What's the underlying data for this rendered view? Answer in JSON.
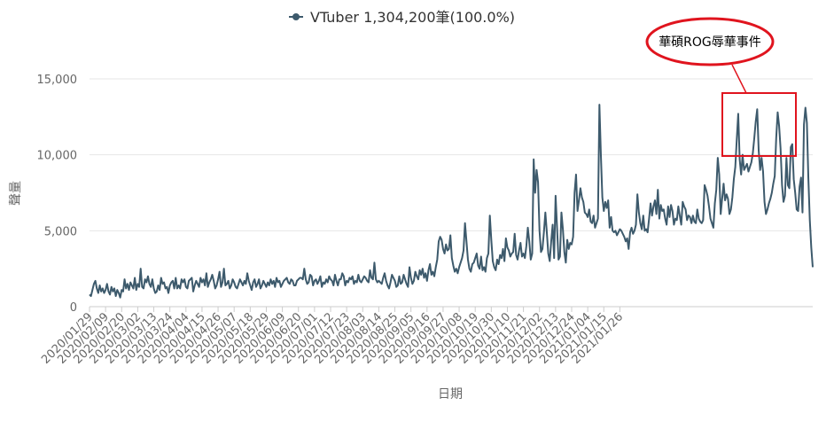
{
  "chart_data": {
    "type": "line",
    "legend": {
      "label": "VTuber 1,304,200筆(100.0%)",
      "placement": "top-center"
    },
    "xlabel": "日期",
    "ylabel": "聲量",
    "ylim": [
      0,
      15000
    ],
    "y_ticks": [
      0,
      5000,
      10000,
      15000
    ],
    "y_tick_labels": [
      "0",
      "5,000",
      "10,000",
      "15,000"
    ],
    "grid": "horizontal",
    "colors": {
      "series": "#3d5a6c",
      "grid": "#e6e6e6",
      "annotation": "#e0141e"
    },
    "x_tick_labels": [
      "2020/01/29",
      "2020/02/09",
      "2020/02/20",
      "2020/03/02",
      "2020/03/13",
      "2020/03/24",
      "2020/04/04",
      "2020/04/15",
      "2020/04/26",
      "2020/05/07",
      "2020/05/18",
      "2020/05/29",
      "2020/06/09",
      "2020/06/20",
      "2020/07/01",
      "2020/07/12",
      "2020/07/23",
      "2020/08/03",
      "2020/08/14",
      "2020/08/25",
      "2020/09/05",
      "2020/09/16",
      "2020/09/27",
      "2020/10/08",
      "2020/10/19",
      "2020/10/30",
      "2020/11/10",
      "2020/11/21",
      "2020/12/02",
      "2020/12/13",
      "2020/12/24",
      "2021/01/04",
      "2021/01/15",
      "2021/01/26"
    ],
    "annotation": {
      "text": "華碩ROG辱華事件"
    },
    "series": [
      {
        "name": "VTuber 1,304,200筆(100.0%)",
        "values": [
          800,
          700,
          1100,
          1500,
          1700,
          1200,
          900,
          1400,
          1000,
          1200,
          900,
          1100,
          1500,
          1000,
          800,
          1300,
          1000,
          1200,
          700,
          1100,
          900,
          600,
          1100,
          1000,
          1800,
          1200,
          1500,
          1100,
          1600,
          1400,
          1200,
          1900,
          1100,
          1500,
          1300,
          2500,
          1300,
          1200,
          1800,
          1600,
          2000,
          1500,
          1300,
          1800,
          1200,
          900,
          1000,
          1400,
          1100,
          1900,
          1500,
          1600,
          1200,
          1300,
          900,
          1400,
          1600,
          1700,
          1200,
          1900,
          1200,
          1400,
          1200,
          1800,
          1600,
          1800,
          1300,
          1200,
          1700,
          1800,
          1900,
          1000,
          1400,
          1700,
          1500,
          1300,
          1900,
          1600,
          1800,
          1400,
          2200,
          1300,
          1600,
          1800,
          2100,
          1700,
          1200,
          1400,
          1800,
          2300,
          1300,
          1600,
          2500,
          1400,
          1500,
          1700,
          1200,
          1400,
          1800,
          1600,
          1300,
          1200,
          1500,
          1800,
          1600,
          1400,
          1700,
          1500,
          2200,
          1700,
          1400,
          1100,
          1600,
          1800,
          1300,
          1500,
          1800,
          1200,
          1400,
          1700,
          1500,
          1300,
          1600,
          1400,
          1800,
          1500,
          1700,
          1300,
          1900,
          1600,
          1700,
          1300,
          1500,
          1700,
          1800,
          1900,
          1600,
          1500,
          1800,
          1700,
          1400,
          1400,
          1700,
          1800,
          1900,
          1900,
          1800,
          2500,
          1800,
          1500,
          1600,
          2100,
          2000,
          1400,
          1700,
          1800,
          1500,
          1700,
          2000,
          1300,
          1600,
          1500,
          1800,
          1600,
          2000,
          1800,
          1700,
          1400,
          2100,
          1700,
          1400,
          1800,
          1800,
          2200,
          2000,
          1400,
          1700,
          1600,
          1900,
          1800,
          2000,
          1500,
          1700,
          1600,
          2100,
          1700,
          1600,
          1800,
          2000,
          1900,
          1700,
          1600,
          2400,
          1900,
          1800,
          2900,
          1800,
          1600,
          1700,
          1600,
          1500,
          1900,
          2200,
          1700,
          1400,
          1200,
          1600,
          2100,
          1900,
          1700,
          1300,
          1400,
          2000,
          1500,
          1600,
          2100,
          1800,
          1500,
          1300,
          2600,
          1900,
          1500,
          1700,
          2300,
          2000,
          1800,
          2400,
          2100,
          2500,
          1900,
          2200,
          1700,
          2400,
          2800,
          2100,
          2300,
          2000,
          2600,
          3100,
          4300,
          4600,
          4400,
          3800,
          3500,
          4100,
          3700,
          3800,
          4700,
          3200,
          2700,
          2300,
          2500,
          2200,
          2600,
          2900,
          3200,
          3700,
          5500,
          4300,
          3100,
          2500,
          2300,
          2800,
          2900,
          3200,
          3500,
          2700,
          2500,
          3300,
          2400,
          2600,
          2300,
          3200,
          3500,
          6000,
          4400,
          3000,
          2600,
          2400,
          3100,
          2800,
          3400,
          3200,
          3800,
          3000,
          4500,
          3900,
          3700,
          3300,
          3500,
          3600,
          4800,
          3400,
          3100,
          3700,
          4200,
          3300,
          3500,
          3200,
          4000,
          5200,
          4300,
          3100,
          3500,
          9700,
          7500,
          9000,
          8200,
          5000,
          3600,
          3800,
          4900,
          6200,
          4900,
          3500,
          3000,
          4300,
          5400,
          3200,
          7300,
          5200,
          3100,
          3300,
          6200,
          5100,
          3600,
          2900,
          4400,
          3800,
          4200,
          4100,
          4600,
          7500,
          8700,
          6300,
          7000,
          7800,
          7200,
          6900,
          6200,
          6100,
          5900,
          6400,
          5600,
          5500,
          6000,
          5200,
          5500,
          5800,
          13300,
          10000,
          7200,
          6300,
          6900,
          6500,
          7000,
          5200,
          5900,
          5000,
          4900,
          5000,
          4700,
          4900,
          5100,
          5000,
          4800,
          4600,
          4300,
          4500,
          3800,
          4900,
          5200,
          4800,
          5000,
          5400,
          7400,
          6200,
          5500,
          5100,
          6000,
          5000,
          5100,
          4900,
          5800,
          6800,
          6000,
          6600,
          7000,
          6100,
          7700,
          5800,
          6700,
          6300,
          6400,
          5800,
          5400,
          6600,
          5900,
          6700,
          6300,
          5400,
          5800,
          5700,
          6600,
          6000,
          5400,
          6900,
          6600,
          6400,
          5700,
          6000,
          5900,
          5500,
          6000,
          5600,
          5500,
          6400,
          5800,
          5600,
          5500,
          5700,
          8000,
          7700,
          7300,
          6600,
          5800,
          5500,
          5200,
          6800,
          7700,
          9800,
          8700,
          6100,
          7100,
          8100,
          7000,
          7400,
          7100,
          6100,
          6400,
          7200,
          8400,
          9200,
          11000,
          12700,
          9700,
          8700,
          10000,
          9000,
          9200,
          9400,
          8900,
          9200,
          9500,
          10100,
          11100,
          12200,
          13000,
          10300,
          9000,
          9800,
          8900,
          6900,
          6100,
          6400,
          6800,
          7100,
          7500,
          8100,
          8600,
          11100,
          12800,
          11900,
          10400,
          8000,
          6900,
          7300,
          9800,
          8000,
          7800,
          10500,
          10700,
          8400,
          7500,
          6400,
          6300,
          7900,
          8500,
          6200,
          12000,
          13100,
          12100,
          8500,
          5700,
          3900,
          2600
        ]
      }
    ]
  }
}
